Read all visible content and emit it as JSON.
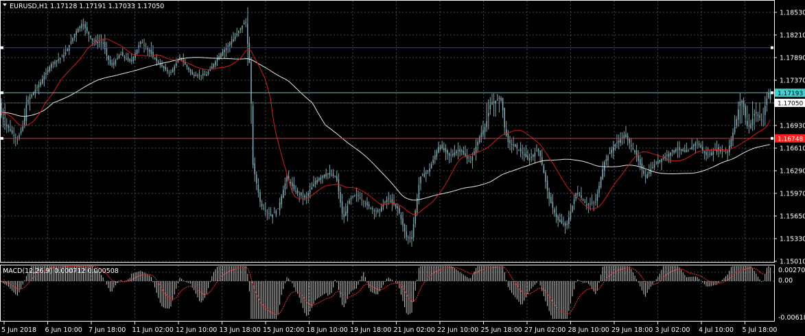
{
  "symbol": {
    "header": "EURUSD,H1  1.17128 1.17191 1.17033 1.17050",
    "menu_icon": "triangle-down-icon"
  },
  "price_scale": {
    "ticks": [
      "1.18530",
      "1.18210",
      "1.17890",
      "1.17370",
      "1.17050",
      "1.16930",
      "1.16610",
      "1.16290",
      "1.15970",
      "1.15650",
      "1.15330",
      "1.15010"
    ],
    "tick_values": [
      1.1853,
      1.1821,
      1.1789,
      1.1737,
      1.1705,
      1.1693,
      1.1661,
      1.1629,
      1.1597,
      1.1565,
      1.1533,
      1.1501
    ],
    "current_price_label": "1.17050",
    "cyan_line_label": "1.17193",
    "red_line_label": "1.16748"
  },
  "levels": {
    "blue_line": 1.1803,
    "cyan_line": 1.17193,
    "red_line": 1.16748,
    "current_price": 1.1705
  },
  "colors": {
    "background": "#000000",
    "grid": "#3a4a5a",
    "candles": "#7fa7b0",
    "ma_fast": "#d41e1e",
    "ma_slow": "#e8e8e8",
    "blue_line": "#2233ff",
    "cyan_line": "#3fd0d0",
    "red_line": "#ff2020",
    "macd_hist": "#c8c8c8",
    "macd_signal": "#ff3030"
  },
  "macd": {
    "label": "MACD(12,26,9) 0.000712 0.000508",
    "scale_ticks": [
      "0.002701",
      "0.00",
      "-0.006182"
    ]
  },
  "time_axis": {
    "labels": [
      "5 Jun 2018",
      "6 Jun 10:00",
      "7 Jun 18:00",
      "11 Jun 02:00",
      "12 Jun 10:00",
      "13 Jun 18:00",
      "15 Jun 02:00",
      "18 Jun 10:00",
      "19 Jun 18:00",
      "21 Jun 02:00",
      "22 Jun 10:00",
      "25 Jun 18:00",
      "27 Jun 02:00",
      "28 Jun 10:00",
      "29 Jun 18:00",
      "3 Jul 02:00",
      "4 Jul 10:00",
      "5 Jul 18:00"
    ]
  }
}
